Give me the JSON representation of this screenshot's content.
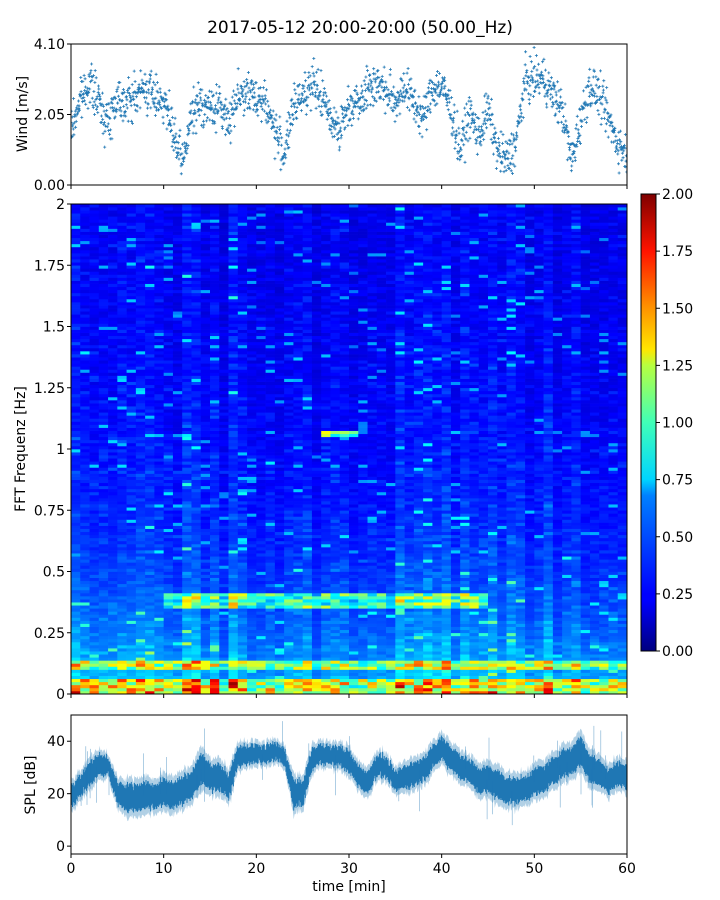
{
  "title": "2017-05-12 20:00-20:00 (50.00_Hz)",
  "chart_data": [
    {
      "type": "scatter",
      "name": "wind",
      "xlabel": "",
      "ylabel": "Wind [m/s]",
      "xlim": [
        0,
        60
      ],
      "ylim": [
        0,
        4.1
      ],
      "yticks": [
        0,
        2.05,
        4.1
      ],
      "ytick_labels": [
        "0.00",
        "2.05",
        "4.10"
      ],
      "color": "#1f77b4",
      "marker": "+",
      "wind_profile": {
        "x": [
          0,
          1,
          2,
          3,
          4,
          5,
          6,
          7,
          8,
          9,
          10,
          11,
          12,
          13,
          14,
          15,
          16,
          17,
          18,
          19,
          20,
          21,
          22,
          23,
          24,
          25,
          26,
          27,
          28,
          29,
          30,
          31,
          32,
          33,
          34,
          35,
          36,
          37,
          38,
          39,
          40,
          41,
          42,
          43,
          44,
          45,
          46,
          47,
          48,
          49,
          50,
          51,
          52,
          53,
          54,
          55,
          56,
          57,
          58,
          59,
          60
        ],
        "mean": [
          1.6,
          2.5,
          3.0,
          2.4,
          1.8,
          2.6,
          2.4,
          2.6,
          2.8,
          2.6,
          2.5,
          1.5,
          0.6,
          2.0,
          2.4,
          2.2,
          2.3,
          1.8,
          2.7,
          2.6,
          2.6,
          2.4,
          1.6,
          0.9,
          2.2,
          2.7,
          2.9,
          2.6,
          2.0,
          1.6,
          2.3,
          2.5,
          2.8,
          3.0,
          2.7,
          2.4,
          2.9,
          2.4,
          1.9,
          2.8,
          2.9,
          2.2,
          1.0,
          2.1,
          1.4,
          2.2,
          1.0,
          0.7,
          1.2,
          3.0,
          3.1,
          3.1,
          2.6,
          2.2,
          0.7,
          1.9,
          2.9,
          2.6,
          1.9,
          1.2,
          0.9
        ],
        "spread": 0.6
      }
    },
    {
      "type": "heatmap",
      "name": "spectrogram",
      "xlabel": "",
      "ylabel": "FFT Frequenz [Hz]",
      "xlim": [
        0,
        60
      ],
      "ylim": [
        0,
        2
      ],
      "yticks": [
        0,
        0.25,
        0.5,
        0.75,
        1,
        1.25,
        1.5,
        1.75,
        2
      ],
      "ytick_labels": [
        "0",
        "0.25",
        "0.5",
        "0.75",
        "1",
        "1.25",
        "1.5",
        "1.75",
        "2"
      ],
      "colormap": "jet",
      "colorbar": {
        "range": [
          0,
          2
        ],
        "ticks": [
          0,
          0.25,
          0.5,
          0.75,
          1,
          1.25,
          1.5,
          1.75,
          2
        ],
        "tick_labels": [
          "0.00",
          "0.25",
          "0.50",
          "0.75",
          "1.00",
          "1.25",
          "1.50",
          "1.75",
          "2.00"
        ]
      },
      "features": [
        {
          "freq": [
            0.0,
            0.05
          ],
          "time": [
            0,
            60
          ],
          "level": 1.5
        },
        {
          "freq": [
            0.1,
            0.12
          ],
          "time": [
            0,
            60
          ],
          "level": 1.3
        },
        {
          "freq": [
            0.35,
            0.4
          ],
          "time": [
            10,
            45
          ],
          "level": 1.1
        },
        {
          "freq": [
            1.05,
            1.06
          ],
          "time": [
            27,
            31
          ],
          "level": 1.2
        }
      ]
    },
    {
      "type": "area",
      "name": "spl",
      "xlabel": "time [min]",
      "ylabel": "SPL [dB]",
      "xlim": [
        0,
        60
      ],
      "ylim": [
        -3,
        50
      ],
      "yticks": [
        0,
        20,
        40
      ],
      "ytick_labels": [
        "0",
        "20",
        "40"
      ],
      "xticks": [
        0,
        10,
        20,
        30,
        40,
        50,
        60
      ],
      "xtick_labels": [
        "0",
        "10",
        "20",
        "30",
        "40",
        "50",
        "60"
      ],
      "color": "#1f77b4",
      "x": [
        0,
        1,
        2,
        3,
        4,
        5,
        6,
        7,
        8,
        9,
        10,
        11,
        12,
        13,
        14,
        15,
        16,
        17,
        18,
        19,
        20,
        21,
        22,
        23,
        24,
        25,
        26,
        27,
        28,
        29,
        30,
        31,
        32,
        33,
        34,
        35,
        36,
        37,
        38,
        39,
        40,
        41,
        42,
        43,
        44,
        45,
        46,
        47,
        48,
        49,
        50,
        51,
        52,
        53,
        54,
        55,
        56,
        57,
        58,
        59,
        60
      ],
      "upper": [
        25,
        29,
        34,
        37,
        35,
        27,
        26,
        26,
        27,
        26,
        28,
        27,
        29,
        31,
        38,
        34,
        34,
        30,
        40,
        40,
        40,
        40,
        41,
        39,
        28,
        27,
        39,
        41,
        40,
        40,
        38,
        33,
        30,
        37,
        36,
        30,
        33,
        34,
        36,
        40,
        44,
        40,
        37,
        35,
        32,
        33,
        31,
        29,
        28,
        29,
        32,
        33,
        36,
        39,
        40,
        45,
        37,
        36,
        31,
        35,
        32
      ],
      "lower": [
        13,
        17,
        21,
        25,
        26,
        14,
        11,
        11,
        12,
        12,
        13,
        12,
        13,
        16,
        21,
        19,
        19,
        15,
        28,
        30,
        30,
        30,
        31,
        30,
        12,
        13,
        27,
        30,
        29,
        29,
        26,
        21,
        18,
        25,
        24,
        19,
        20,
        21,
        23,
        27,
        31,
        27,
        24,
        22,
        18,
        18,
        16,
        14,
        14,
        15,
        17,
        18,
        21,
        24,
        25,
        28,
        22,
        21,
        18,
        21,
        20
      ]
    }
  ]
}
